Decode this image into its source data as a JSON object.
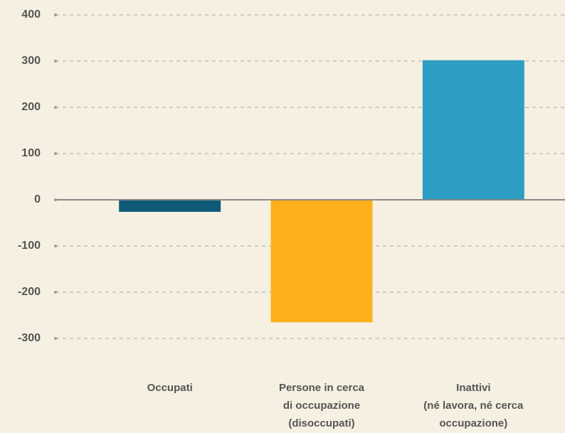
{
  "chart_data": {
    "type": "bar",
    "categories": [
      [
        "Occupati"
      ],
      [
        "Persone in cerca",
        "di occupazione",
        "(disoccupati)"
      ],
      [
        "Inattivi",
        "(né lavora, né cerca",
        "occupazione)"
      ]
    ],
    "values": [
      -26,
      -265,
      302
    ],
    "colors": [
      "#0e5a78",
      "#fdb01a",
      "#2e9dc4"
    ],
    "ylim": [
      -300,
      400
    ],
    "yticks": [
      -300,
      -200,
      -100,
      0,
      100,
      200,
      300,
      400
    ],
    "grid": true
  }
}
